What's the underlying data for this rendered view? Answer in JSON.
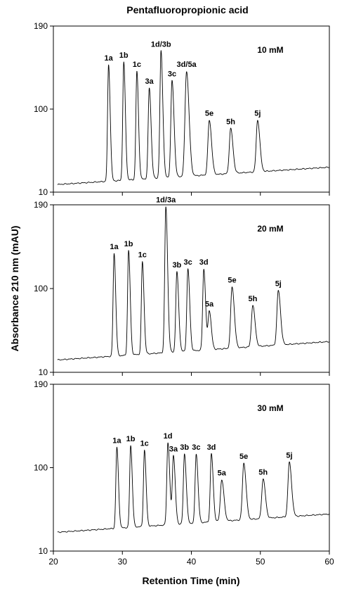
{
  "chart_data": {
    "type": "line",
    "title": "Pentafluoropropionic acid",
    "xlabel": "Retention Time (min)",
    "ylabel": "Absorbance 210 nm (mAU)",
    "xlim": [
      20,
      60
    ],
    "x_ticks": [
      "20",
      "30",
      "40",
      "50",
      "60"
    ],
    "grid": false,
    "panels": [
      {
        "condition": "10 mM",
        "ylim": [
          10,
          190
        ],
        "y_ticks": [
          "10",
          "100",
          "190"
        ],
        "baseline": {
          "start": 18,
          "end": 37
        },
        "peaks": [
          {
            "label": "1a",
            "x": 28.0,
            "y": 148,
            "width": 0.18
          },
          {
            "label": "1b",
            "x": 30.2,
            "y": 151,
            "width": 0.18
          },
          {
            "label": "1c",
            "x": 32.1,
            "y": 141,
            "width": 0.18
          },
          {
            "label": "3a",
            "x": 33.9,
            "y": 123,
            "width": 0.2
          },
          {
            "label": "1d/3b",
            "x": 35.6,
            "y": 163,
            "width": 0.2
          },
          {
            "label": "3c",
            "x": 37.2,
            "y": 131,
            "width": 0.22
          },
          {
            "label": "3d/5a",
            "x": 39.3,
            "y": 141,
            "width": 0.28
          },
          {
            "label": "5e",
            "x": 42.6,
            "y": 88,
            "width": 0.25
          },
          {
            "label": "5h",
            "x": 45.7,
            "y": 79,
            "width": 0.25
          },
          {
            "label": "5j",
            "x": 49.6,
            "y": 88,
            "width": 0.25
          }
        ]
      },
      {
        "condition": "20 mM",
        "ylim": [
          10,
          190
        ],
        "y_ticks": [
          "10",
          "100",
          "190"
        ],
        "baseline": {
          "start": 23,
          "end": 43
        },
        "peaks": [
          {
            "label": "1a",
            "x": 28.8,
            "y": 138,
            "width": 0.18
          },
          {
            "label": "1b",
            "x": 30.9,
            "y": 141,
            "width": 0.18
          },
          {
            "label": "1c",
            "x": 32.9,
            "y": 129,
            "width": 0.18
          },
          {
            "label": "1d/3a",
            "x": 36.3,
            "y": 188,
            "width": 0.2
          },
          {
            "label": "3b",
            "x": 37.9,
            "y": 118,
            "width": 0.2
          },
          {
            "label": "3c",
            "x": 39.5,
            "y": 121,
            "width": 0.2
          },
          {
            "label": "3d",
            "x": 41.8,
            "y": 121,
            "width": 0.2
          },
          {
            "label": "5a",
            "x": 42.6,
            "y": 76,
            "width": 0.22
          },
          {
            "label": "5e",
            "x": 45.9,
            "y": 102,
            "width": 0.25
          },
          {
            "label": "5h",
            "x": 48.9,
            "y": 82,
            "width": 0.25
          },
          {
            "label": "5j",
            "x": 52.6,
            "y": 98,
            "width": 0.25
          }
        ]
      },
      {
        "condition": "30 mM",
        "ylim": [
          10,
          190
        ],
        "y_ticks": [
          "10",
          "100",
          "190"
        ],
        "baseline": {
          "start": 30,
          "end": 50
        },
        "peaks": [
          {
            "label": "1a",
            "x": 29.2,
            "y": 122,
            "width": 0.18
          },
          {
            "label": "1b",
            "x": 31.2,
            "y": 124,
            "width": 0.18
          },
          {
            "label": "1c",
            "x": 33.2,
            "y": 119,
            "width": 0.18
          },
          {
            "label": "1d",
            "x": 36.6,
            "y": 127,
            "width": 0.2
          },
          {
            "label": "3a",
            "x": 37.4,
            "y": 113,
            "width": 0.2
          },
          {
            "label": "3b",
            "x": 39.0,
            "y": 115,
            "width": 0.2
          },
          {
            "label": "3c",
            "x": 40.7,
            "y": 115,
            "width": 0.2
          },
          {
            "label": "3d",
            "x": 42.9,
            "y": 115,
            "width": 0.2
          },
          {
            "label": "5a",
            "x": 44.4,
            "y": 87,
            "width": 0.25
          },
          {
            "label": "5e",
            "x": 47.6,
            "y": 105,
            "width": 0.25
          },
          {
            "label": "5h",
            "x": 50.4,
            "y": 88,
            "width": 0.25
          },
          {
            "label": "5j",
            "x": 54.2,
            "y": 106,
            "width": 0.25
          }
        ]
      }
    ]
  }
}
